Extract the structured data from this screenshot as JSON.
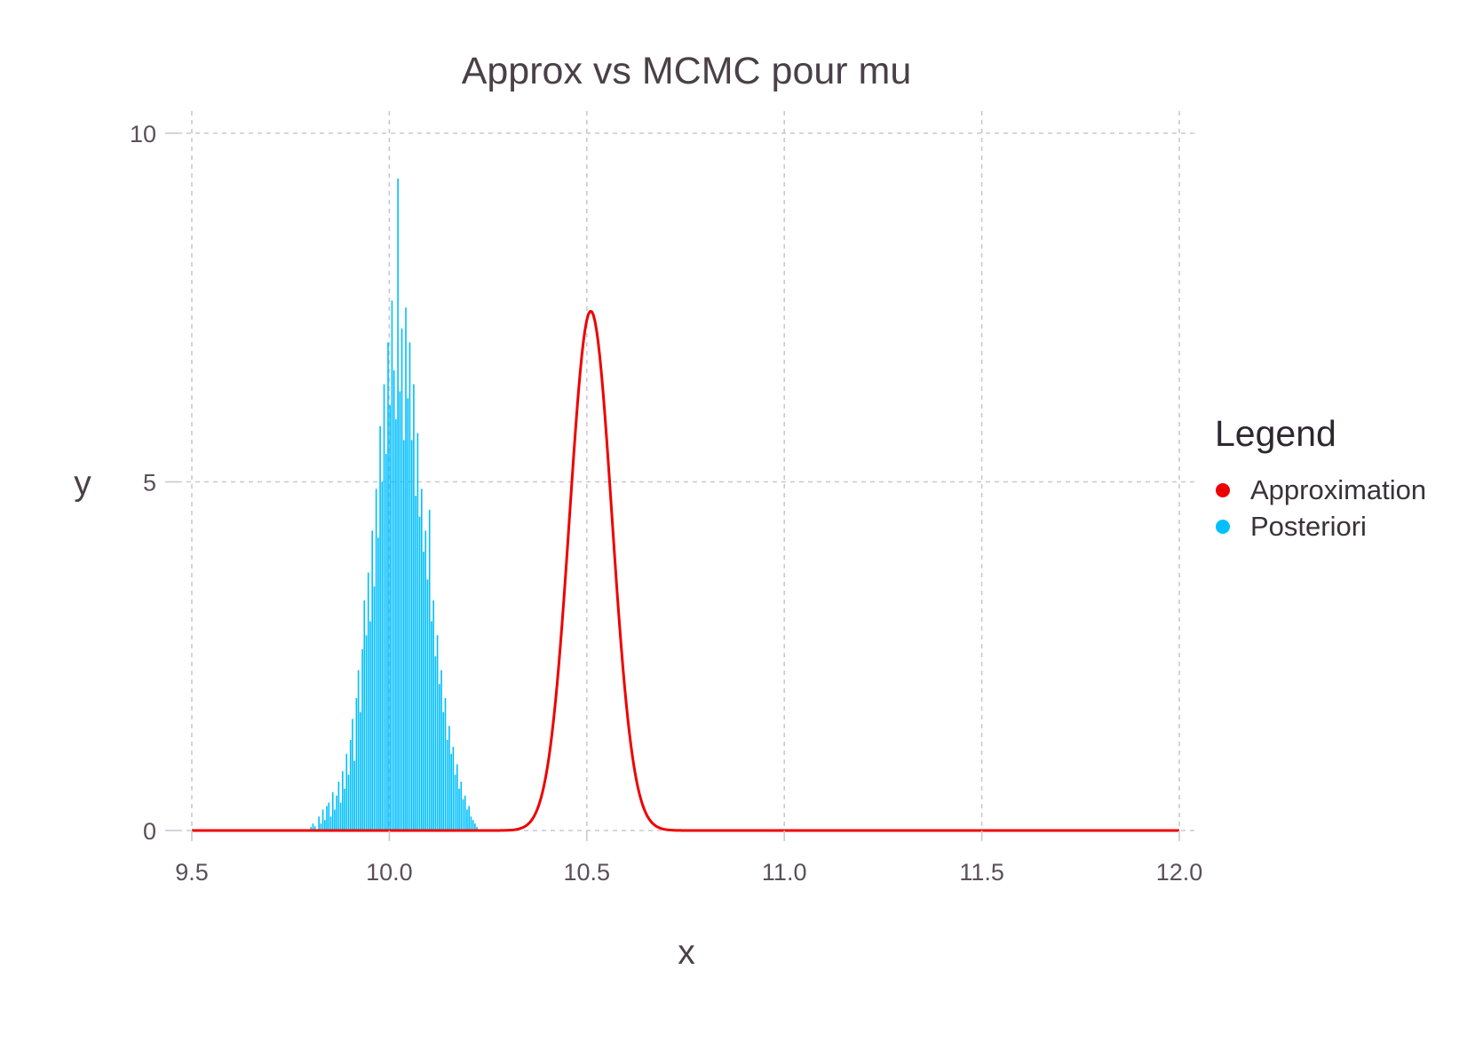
{
  "chart_data": {
    "type": "bar",
    "title": "Approx vs MCMC pour mu",
    "xlabel": "x",
    "ylabel": "y",
    "xlim": [
      9.5,
      12.0
    ],
    "ylim": [
      0,
      10
    ],
    "xticks": [
      "9.5",
      "10.0",
      "10.5",
      "11.0",
      "11.5",
      "12.0"
    ],
    "yticks": [
      "0",
      "5",
      "10"
    ],
    "grid": true,
    "legend": {
      "title": "Legend",
      "placement": "right",
      "entries": [
        {
          "label": "Approximation",
          "color": "#ee0000"
        },
        {
          "label": "Posteriori",
          "color": "#00bfff"
        }
      ]
    },
    "series": [
      {
        "name": "Approximation",
        "kind": "line",
        "color": "#ee0000",
        "distribution": "normal",
        "mean": 10.51,
        "sd": 0.0535,
        "x_range": [
          9.5,
          12.0
        ],
        "peak_y": 7.45
      },
      {
        "name": "Posteriori",
        "kind": "histogram",
        "color": "#00bfff",
        "bin_width": 0.005,
        "bin_start": 9.8,
        "values": [
          0.05,
          0.1,
          0.06,
          0.0,
          0.2,
          0.1,
          0.3,
          0.15,
          0.35,
          0.4,
          0.2,
          0.55,
          0.3,
          0.5,
          0.7,
          0.4,
          0.85,
          0.6,
          1.1,
          0.8,
          1.3,
          1.6,
          1.0,
          1.9,
          2.3,
          1.7,
          2.6,
          3.3,
          2.8,
          3.7,
          3.0,
          4.3,
          3.5,
          4.9,
          4.2,
          5.8,
          5.0,
          6.4,
          5.4,
          7.0,
          6.1,
          7.6,
          6.6,
          5.9,
          9.35,
          6.3,
          7.2,
          5.6,
          7.5,
          6.2,
          7.0,
          5.6,
          6.4,
          4.8,
          5.7,
          4.5,
          4.9,
          4.0,
          4.3,
          3.6,
          4.6,
          3.0,
          3.3,
          2.5,
          2.8,
          2.1,
          2.3,
          1.7,
          1.9,
          1.3,
          1.5,
          1.1,
          1.2,
          0.8,
          0.95,
          0.6,
          0.7,
          0.45,
          0.5,
          0.3,
          0.35,
          0.2,
          0.15,
          0.1,
          0.05
        ]
      }
    ]
  }
}
